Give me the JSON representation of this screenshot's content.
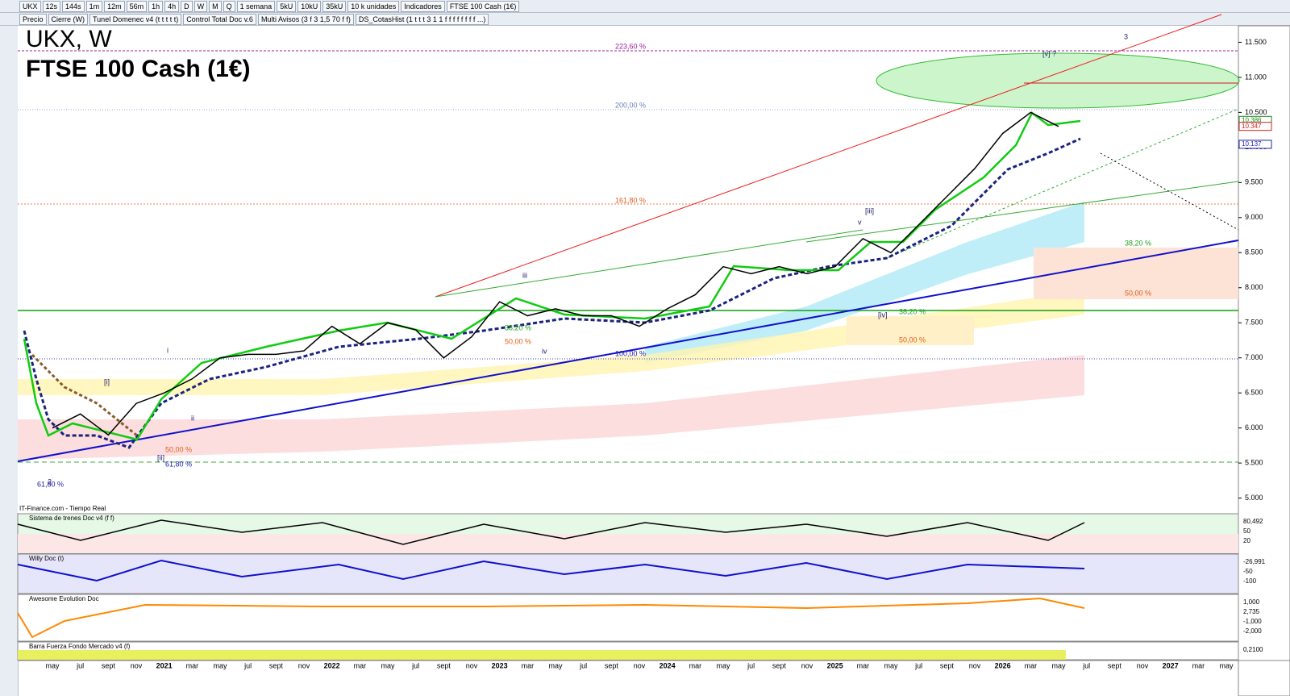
{
  "toolbar": {
    "symbol": "UKX",
    "timeframes": [
      "12s",
      "144s",
      "1m",
      "12m",
      "56m",
      "1h",
      "4h",
      "D",
      "W",
      "M",
      "Q"
    ],
    "period": "1 semana",
    "units": [
      "5kU",
      "10kU",
      "35kU"
    ],
    "units_menu": "10 k unidades",
    "indicators": "Indicadores",
    "instrument": "FTSE 100 Cash (1€)"
  },
  "indicator_bar": [
    "Precio",
    "Cierre (W)",
    "Tunel Domenec v4 (t t t t t)",
    "Control Total Doc v.6",
    "Multi Avisos (3 f 3 1,5 70 f f)",
    "DS_CotasHist (1 t t t 3 1 1 f f f f f f f f ...)"
  ],
  "chart_data": {
    "type": "line",
    "title": "UKX, W",
    "subtitle": "FTSE 100 Cash (1€)",
    "source": "IT-Finance.com - Tiempo Real",
    "categories": [
      "may",
      "jul",
      "sept",
      "nov",
      "2021",
      "mar",
      "may",
      "jul",
      "sept",
      "nov",
      "2022",
      "mar",
      "may",
      "jul",
      "sept",
      "nov",
      "2023",
      "mar",
      "may",
      "jul",
      "sept",
      "nov",
      "2024",
      "mar",
      "may",
      "jul",
      "sept",
      "nov",
      "2025",
      "mar",
      "may",
      "jul",
      "sept",
      "nov",
      "2026",
      "mar",
      "may",
      "jul",
      "sept",
      "nov",
      "2027",
      "mar",
      "may"
    ],
    "values": [
      6000,
      6200,
      5900,
      6350,
      6500,
      6700,
      7000,
      7050,
      7050,
      7100,
      7450,
      7200,
      7500,
      7400,
      7000,
      7300,
      7800,
      7600,
      7700,
      7600,
      7600,
      7450,
      7700,
      7900,
      8300,
      8200,
      8300,
      8200,
      8300,
      8700,
      8500,
      8900,
      9300,
      9700,
      10200,
      10500,
      10300,
      null,
      null,
      null,
      null,
      null,
      null
    ],
    "color": "#000000",
    "grid": false,
    "ylim": [
      4800,
      11850
    ],
    "yticks": [
      {
        "value": 5000,
        "label": "5.000"
      },
      {
        "value": 5500,
        "label": "5.500"
      },
      {
        "value": 6000,
        "label": "6.000"
      },
      {
        "value": 6500,
        "label": "6.500"
      },
      {
        "value": 7000,
        "label": "7.000"
      },
      {
        "value": 7500,
        "label": "7.500"
      },
      {
        "value": 8000,
        "label": "8.000"
      },
      {
        "value": 8500,
        "label": "8.500"
      },
      {
        "value": 9000,
        "label": "9.000"
      },
      {
        "value": 9500,
        "label": "9.500"
      },
      {
        "value": 10000,
        "label": "10.000"
      },
      {
        "value": 10500,
        "label": "10.500"
      },
      {
        "value": 11000,
        "label": "11.000"
      },
      {
        "value": 11500,
        "label": "11.500"
      }
    ],
    "price_labels": [
      {
        "value": 10386,
        "label": "10.386"
      },
      {
        "value": 10347,
        "label": "10.347"
      },
      {
        "value": 10137,
        "label": "10.137"
      }
    ],
    "fib_labels": [
      "223,60 %",
      "200,00 %",
      "161,80 %",
      "100,00 %",
      "38,20 %",
      "50,00 %",
      "38,20 %",
      "50,00 %",
      "38,20 %",
      "50,00 %",
      "50,00 %",
      "61,80 %",
      "61,80 %"
    ],
    "wave_labels": [
      "3",
      "[v] ?",
      "[iii]",
      "v",
      "iii",
      "iv",
      "i",
      "ii",
      "[i]",
      "[ii]",
      "[iv]",
      "2"
    ]
  },
  "panels": [
    {
      "title": "Sistema de trenes Doc v4 (f f)",
      "labels": [
        "80,492",
        "50",
        "20"
      ]
    },
    {
      "title": "Willy Doc (t)",
      "labels": [
        "-26,991",
        "-50",
        "-100"
      ]
    },
    {
      "title": "Awesome Evolution Doc",
      "labels": [
        "1,000",
        "2,735",
        "-1,000",
        "-2,000"
      ]
    },
    {
      "title": "Barra Fuerza Fondo Mercado v4 (f)",
      "labels": [
        "0,2100"
      ]
    }
  ]
}
